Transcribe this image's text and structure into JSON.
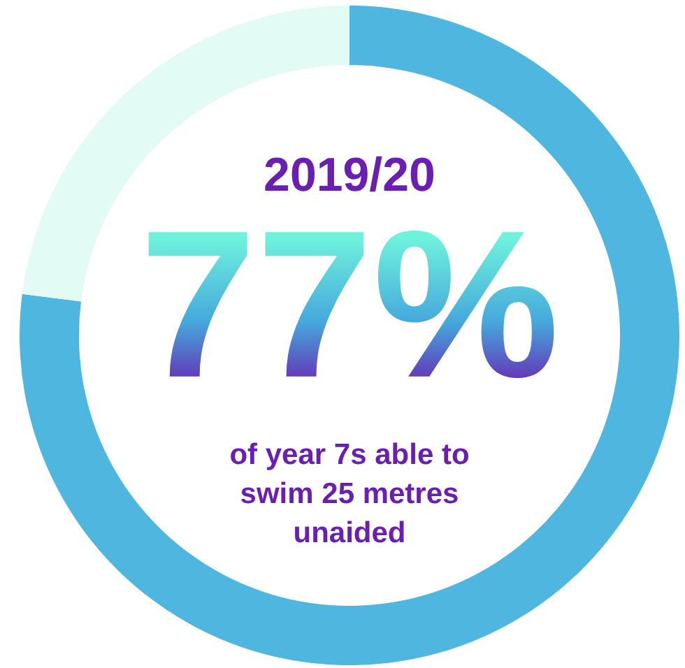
{
  "chart_data": {
    "type": "donut",
    "title": "2019/20",
    "categories": [
      null,
      null
    ],
    "values": [
      77,
      23
    ],
    "colors": [
      "#4fb6e0",
      "#e2fbf5"
    ],
    "value_labels": [
      "77%",
      null
    ],
    "annotations": [
      "of year 7s able to swim 25 metres unaided"
    ]
  }
}
